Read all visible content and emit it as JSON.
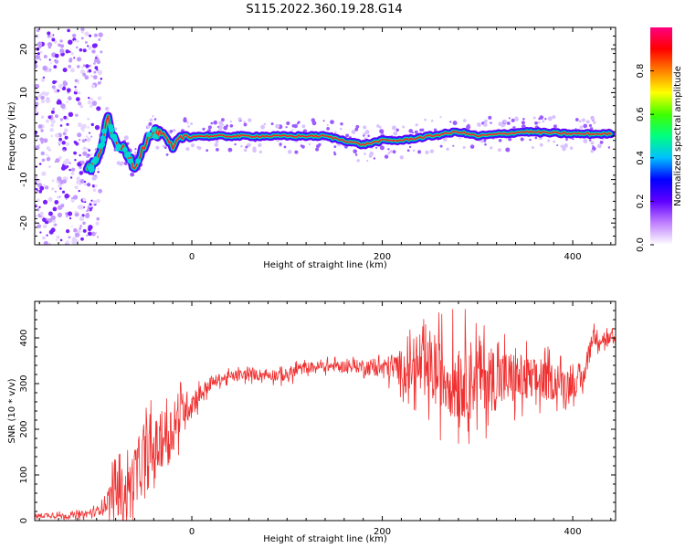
{
  "title": "S115.2022.360.19.28.G14",
  "chart_data": [
    {
      "type": "heatmap",
      "xlabel": "Height of straight line (km)",
      "ylabel": "Frequency (Hz)",
      "xlim": [
        -165,
        445
      ],
      "ylim": [
        -25,
        25
      ],
      "x_ticks": [
        0,
        200,
        400
      ],
      "y_ticks": [
        -20,
        -10,
        0,
        10,
        20
      ],
      "colorbar": {
        "label": "Normalized spectral amplitude",
        "ticks": [
          "0.0",
          "0.2",
          "0.4",
          "0.6",
          "0.8"
        ],
        "range": [
          0,
          1
        ],
        "colors": [
          "#ffffff",
          "#c080ff",
          "#6000ff",
          "#0000ff",
          "#00c0ff",
          "#00ff80",
          "#40ff00",
          "#ffff00",
          "#ff8000",
          "#ff0000",
          "#ff0080"
        ]
      },
      "peak_frequency_trace": {
        "x": [
          -110,
          -100,
          -95,
          -88,
          -80,
          -70,
          -60,
          -50,
          -40,
          -30,
          -20,
          -10,
          0,
          50,
          100,
          140,
          160,
          180,
          200,
          220,
          250,
          280,
          300,
          350,
          400,
          440
        ],
        "y": [
          -8,
          -6,
          -2,
          4,
          -2,
          -3,
          -7,
          -2,
          1,
          0,
          -3,
          0,
          0,
          0,
          0,
          0,
          -1,
          -2,
          -1,
          -1,
          0,
          1,
          0,
          1,
          0.5,
          0.5
        ]
      }
    },
    {
      "type": "line",
      "xlabel": "Height of straight line (km)",
      "ylabel": "SNR (10 * v/v)",
      "xlim": [
        -165,
        445
      ],
      "ylim": [
        0,
        480
      ],
      "x_ticks": [
        0,
        200,
        400
      ],
      "y_ticks": [
        0,
        100,
        200,
        300,
        400
      ],
      "color": "#f03030",
      "series": [
        {
          "name": "",
          "x": [
            -165,
            -150,
            -130,
            -110,
            -100,
            -90,
            -80,
            -70,
            -60,
            -50,
            -40,
            -30,
            -20,
            -10,
            0,
            10,
            20,
            30,
            40,
            60,
            80,
            100,
            110,
            120,
            140,
            160,
            180,
            200,
            220,
            240,
            260,
            280,
            300,
            320,
            340,
            360,
            380,
            400,
            410,
            420,
            430,
            445
          ],
          "y": [
            10,
            12,
            10,
            15,
            20,
            40,
            70,
            60,
            100,
            130,
            150,
            180,
            200,
            240,
            260,
            280,
            300,
            310,
            315,
            320,
            320,
            318,
            330,
            335,
            338,
            338,
            338,
            335,
            335,
            330,
            320,
            310,
            318,
            310,
            310,
            305,
            305,
            300,
            300,
            400,
            400,
            390
          ],
          "noise_amplitude": [
            5,
            6,
            5,
            8,
            10,
            20,
            60,
            50,
            60,
            70,
            70,
            60,
            60,
            40,
            30,
            20,
            15,
            12,
            12,
            12,
            12,
            15,
            15,
            12,
            12,
            12,
            15,
            20,
            40,
            60,
            80,
            90,
            80,
            70,
            60,
            50,
            40,
            30,
            25,
            20,
            20,
            20
          ]
        }
      ]
    }
  ]
}
